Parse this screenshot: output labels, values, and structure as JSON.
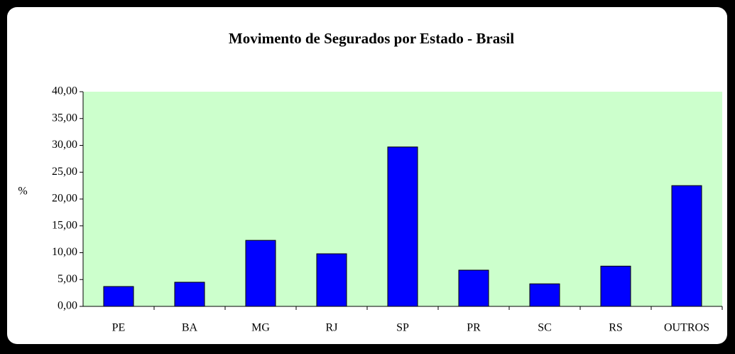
{
  "chart_data": {
    "type": "bar",
    "title": "Movimento de Segurados por Estado - Brasil",
    "y_label": "%",
    "categories": [
      "PE",
      "BA",
      "MG",
      "RJ",
      "SP",
      "PR",
      "SC",
      "RS",
      "OUTROS"
    ],
    "values": [
      3.7,
      4.5,
      12.3,
      9.8,
      29.7,
      6.75,
      4.2,
      7.5,
      22.5
    ],
    "color": "#0000ff",
    "plot_background": "#ccffcc",
    "ylim": [
      0,
      40
    ],
    "yticks": [
      {
        "value": 0,
        "label": "0,00"
      },
      {
        "value": 5,
        "label": "5,00"
      },
      {
        "value": 10,
        "label": "10,00"
      },
      {
        "value": 15,
        "label": "15,00"
      },
      {
        "value": 20,
        "label": "20,00"
      },
      {
        "value": 25,
        "label": "25,00"
      },
      {
        "value": 30,
        "label": "30,00"
      },
      {
        "value": 35,
        "label": "35,00"
      },
      {
        "value": 40,
        "label": "40,00"
      }
    ],
    "grid": false
  }
}
